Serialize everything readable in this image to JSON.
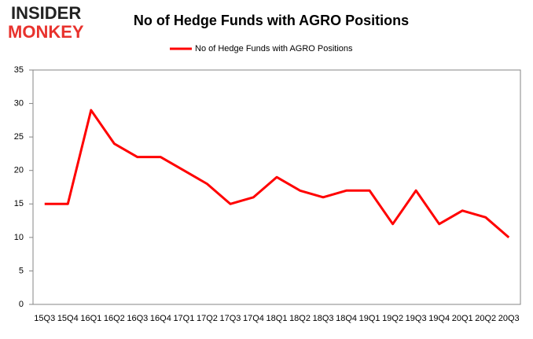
{
  "logo": {
    "top": "INSIDER",
    "bottom": "MONKEY"
  },
  "chart_data": {
    "type": "line",
    "title": "No of Hedge Funds with AGRO Positions",
    "categories": [
      "15Q3",
      "15Q4",
      "16Q1",
      "16Q2",
      "16Q3",
      "16Q4",
      "17Q1",
      "17Q2",
      "17Q3",
      "17Q4",
      "18Q1",
      "18Q2",
      "18Q3",
      "18Q4",
      "19Q1",
      "19Q2",
      "19Q3",
      "19Q4",
      "20Q1",
      "20Q2",
      "20Q3"
    ],
    "series": [
      {
        "name": "No of Hedge Funds with AGRO Positions",
        "color": "#ff0000",
        "values": [
          15,
          15,
          29,
          24,
          22,
          22,
          20,
          18,
          15,
          16,
          19,
          17,
          16,
          17,
          17,
          12,
          17,
          12,
          14,
          13,
          10
        ]
      }
    ],
    "ylim": [
      0,
      35
    ],
    "yticks": [
      0,
      5,
      10,
      15,
      20,
      25,
      30,
      35
    ],
    "grid": false,
    "legend": "top"
  }
}
